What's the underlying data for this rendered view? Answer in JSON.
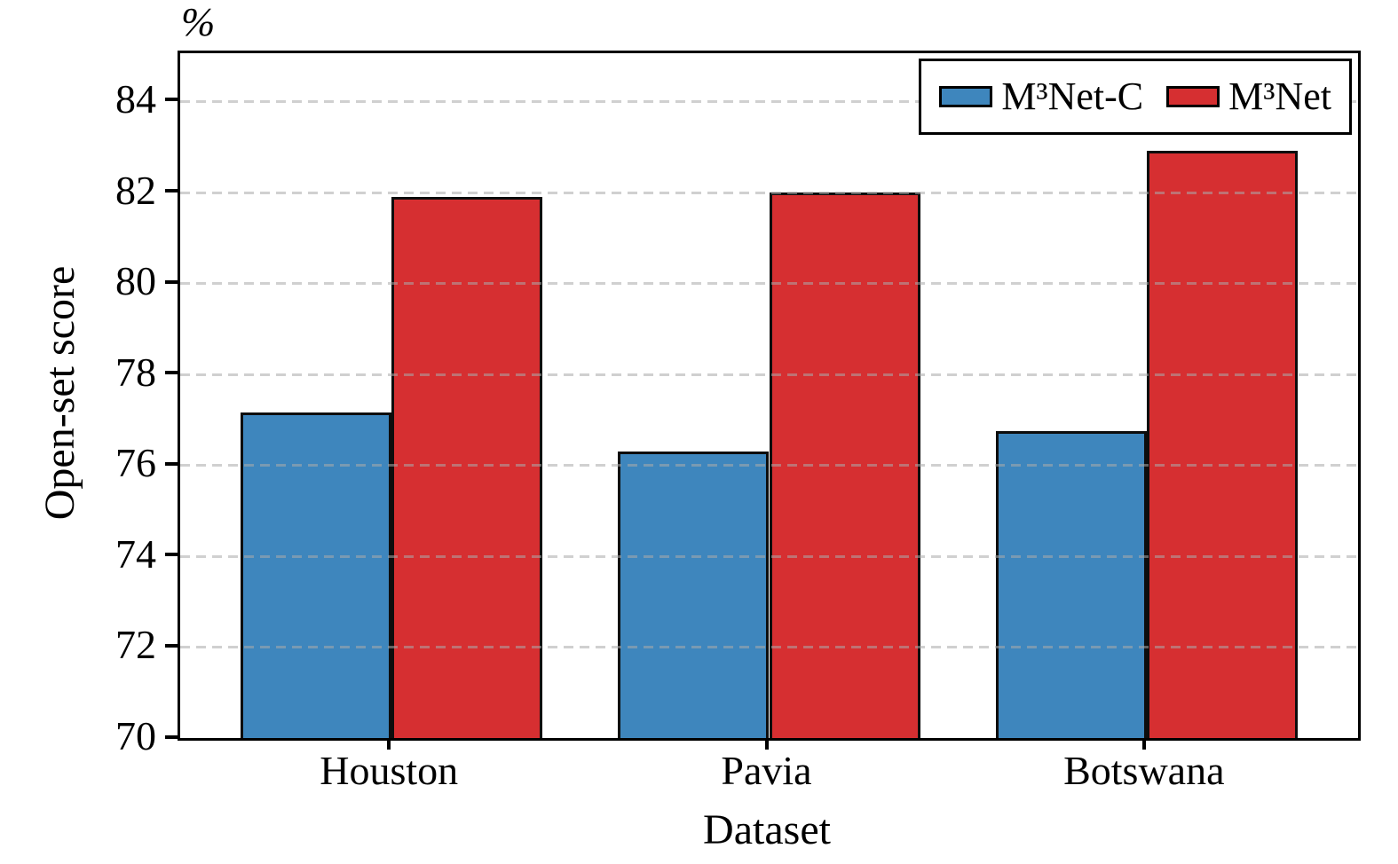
{
  "figure": {
    "y_unit_label": "%",
    "ylabel": "Open-set score",
    "xlabel": "Dataset"
  },
  "legend": {
    "entries": [
      {
        "label": "M³Net-C",
        "color": "#3E86BD"
      },
      {
        "label": "M³Net",
        "color": "#D62F31"
      }
    ],
    "position": "upper right"
  },
  "chart_data": {
    "type": "bar",
    "categories": [
      "Houston",
      "Pavia",
      "Botswana"
    ],
    "series": [
      {
        "name": "M³Net-C",
        "color": "#3E86BD",
        "values": [
          77.15,
          76.3,
          76.75
        ]
      },
      {
        "name": "M³Net",
        "color": "#D62F31",
        "values": [
          81.9,
          82.0,
          82.9
        ]
      }
    ],
    "title": "",
    "xlabel": "Dataset",
    "ylabel": "Open-set score",
    "y_unit": "%",
    "ylim": [
      70,
      85.05
    ],
    "yticks": [
      70,
      72,
      74,
      76,
      78,
      80,
      82,
      84
    ],
    "bar_width": 0.4,
    "grid": "horizontal dashed gridlines drawn over bars",
    "legend_position": "upper right",
    "colors": {
      "series1": "#3E86BD",
      "series2": "#D62F31",
      "axis": "#000000",
      "gridline": "#dcdcdc"
    }
  }
}
